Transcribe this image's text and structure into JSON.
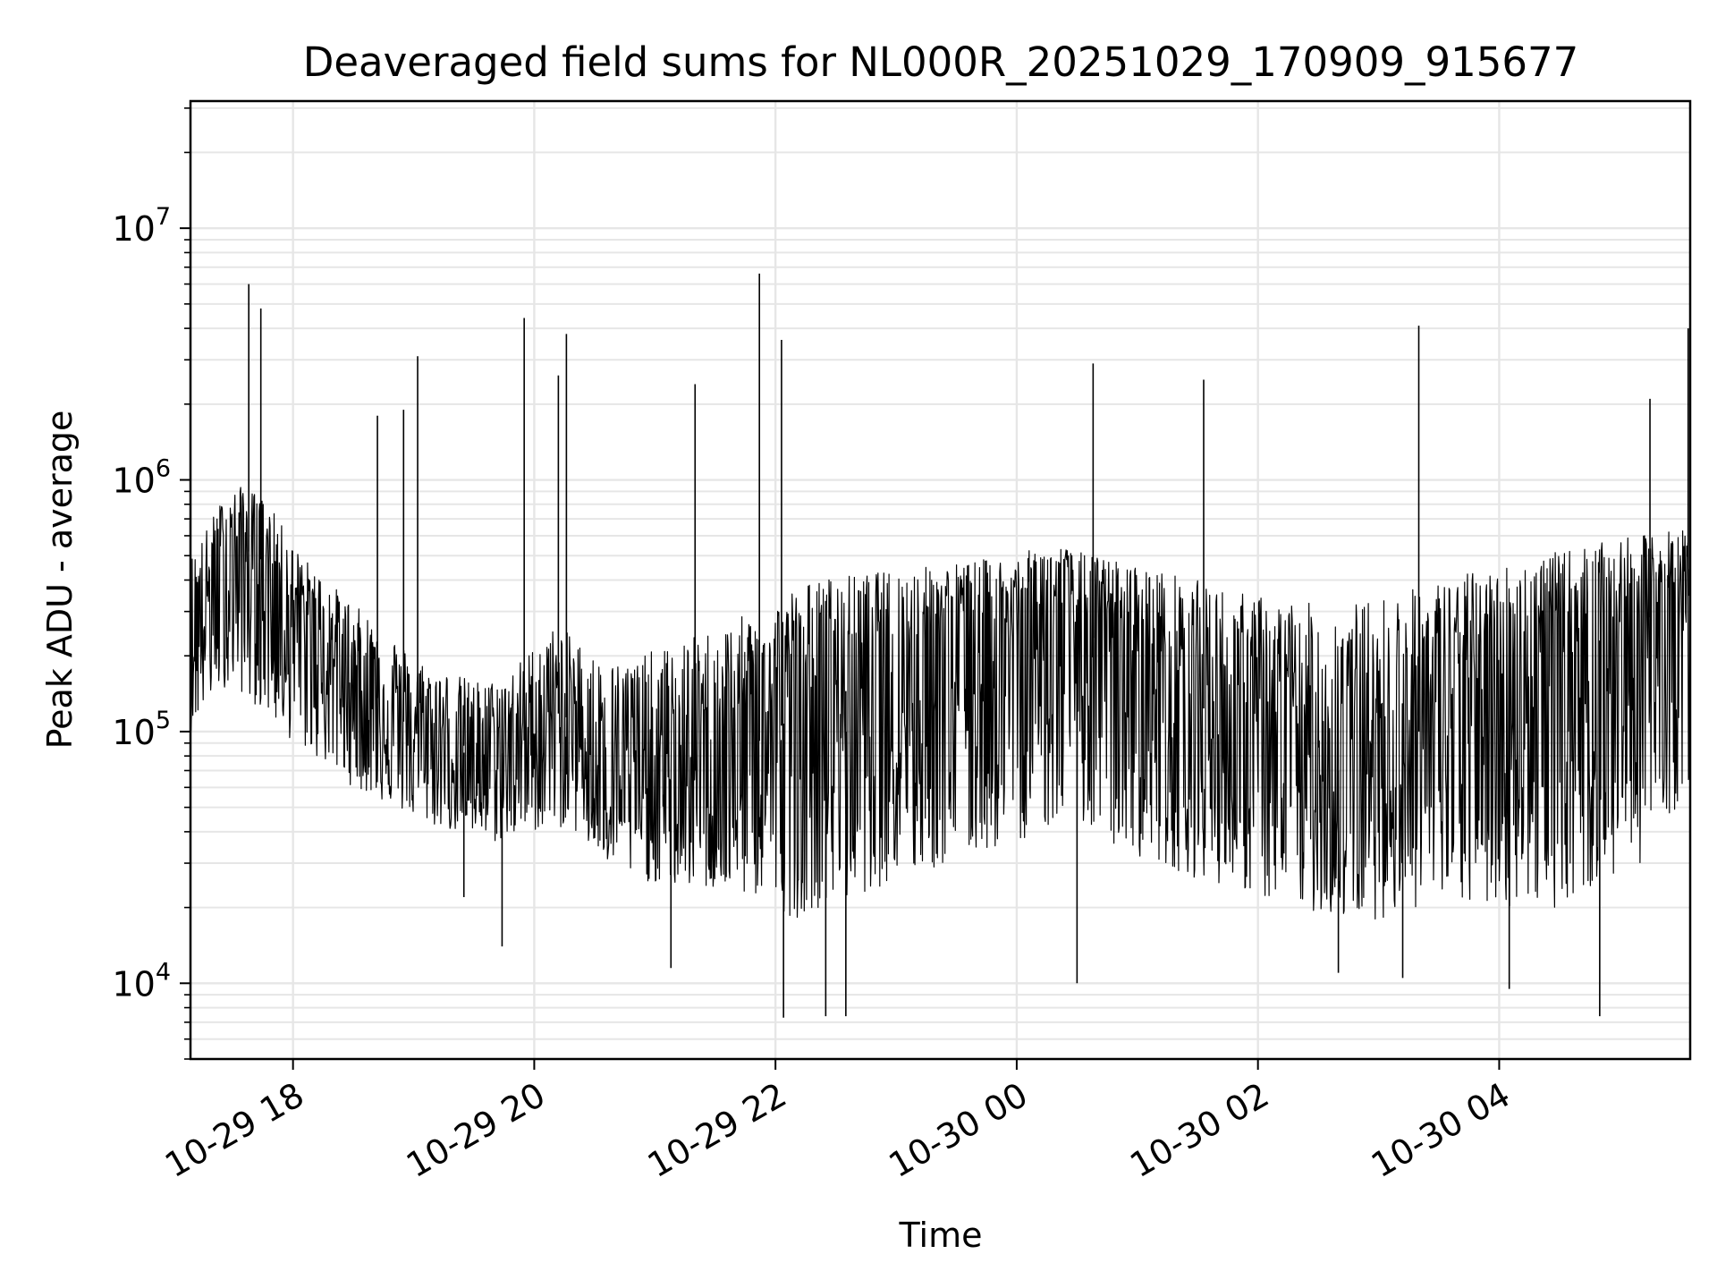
{
  "chart_data": {
    "type": "line",
    "title": "Deaveraged field sums for NL000R_20251029_170909_915677",
    "xlabel": "Time",
    "ylabel": "Peak ADU - average",
    "yscale": "log",
    "ylim": [
      5000,
      32000000
    ],
    "xlim": [
      "2025-10-29 17:09",
      "2025-10-30 05:35"
    ],
    "grid": true,
    "line_color": "#000000",
    "grid_color": "#e6e6e6",
    "x_ticks": [
      {
        "label": "10-29 18",
        "time": "2025-10-29 18:00"
      },
      {
        "label": "10-29 20",
        "time": "2025-10-29 20:00"
      },
      {
        "label": "10-29 22",
        "time": "2025-10-29 22:00"
      },
      {
        "label": "10-30 00",
        "time": "2025-10-30 00:00"
      },
      {
        "label": "10-30 02",
        "time": "2025-10-30 02:00"
      },
      {
        "label": "10-30 04",
        "time": "2025-10-30 04:00"
      }
    ],
    "y_ticks": [
      {
        "value": 10000,
        "base": "10",
        "exp": "4"
      },
      {
        "value": 100000,
        "base": "10",
        "exp": "5"
      },
      {
        "value": 1000000,
        "base": "10",
        "exp": "6"
      },
      {
        "value": 10000000,
        "base": "10",
        "exp": "7"
      }
    ],
    "series": [
      {
        "x": [
          "2025-10-29 17:09",
          "2025-10-29 17:15",
          "2025-10-29 17:25",
          "2025-10-29 17:30",
          "2025-10-29 17:35",
          "2025-10-29 17:40",
          "2025-10-29 17:45",
          "2025-10-29 17:50",
          "2025-10-29 17:55",
          "2025-10-29 18:00",
          "2025-10-29 18:10",
          "2025-10-29 18:20",
          "2025-10-29 18:30",
          "2025-10-29 18:40",
          "2025-10-29 18:50",
          "2025-10-29 19:00",
          "2025-10-29 19:10",
          "2025-10-29 19:20",
          "2025-10-29 19:30",
          "2025-10-29 19:40",
          "2025-10-29 19:50",
          "2025-10-29 20:00",
          "2025-10-29 20:10",
          "2025-10-29 20:20",
          "2025-10-29 20:30",
          "2025-10-29 20:40",
          "2025-10-29 20:50",
          "2025-10-29 21:00",
          "2025-10-29 21:10",
          "2025-10-29 21:20",
          "2025-10-29 21:30",
          "2025-10-29 21:40",
          "2025-10-29 21:50",
          "2025-10-29 22:00",
          "2025-10-29 22:10",
          "2025-10-29 22:20",
          "2025-10-29 22:30",
          "2025-10-29 22:40",
          "2025-10-29 22:50",
          "2025-10-29 23:00",
          "2025-10-29 23:10",
          "2025-10-29 23:20",
          "2025-10-29 23:30",
          "2025-10-29 23:40",
          "2025-10-29 23:50",
          "2025-10-30 00:00",
          "2025-10-30 00:10",
          "2025-10-30 00:20",
          "2025-10-30 00:30",
          "2025-10-30 00:40",
          "2025-10-30 00:50",
          "2025-10-30 01:00",
          "2025-10-30 01:10",
          "2025-10-30 01:20",
          "2025-10-30 01:30",
          "2025-10-30 01:40",
          "2025-10-30 01:50",
          "2025-10-30 02:00",
          "2025-10-30 02:10",
          "2025-10-30 02:20",
          "2025-10-30 02:30",
          "2025-10-30 02:40",
          "2025-10-30 02:50",
          "2025-10-30 03:00",
          "2025-10-30 03:10",
          "2025-10-30 03:20",
          "2025-10-30 03:30",
          "2025-10-30 03:40",
          "2025-10-30 03:50",
          "2025-10-30 04:00",
          "2025-10-30 04:10",
          "2025-10-30 04:20",
          "2025-10-30 04:30",
          "2025-10-30 04:40",
          "2025-10-30 04:50",
          "2025-10-30 05:00",
          "2025-10-30 05:10",
          "2025-10-30 05:20",
          "2025-10-30 05:35"
        ],
        "y": [
          250000,
          300000,
          450000,
          500000,
          550000,
          500000,
          480000,
          400000,
          350000,
          300000,
          250000,
          200000,
          160000,
          140000,
          120000,
          100000,
          90000,
          85000,
          80000,
          80000,
          85000,
          100000,
          120000,
          110000,
          80000,
          70000,
          65000,
          60000,
          65000,
          70000,
          75000,
          80000,
          90000,
          100000,
          120000,
          130000,
          140000,
          150000,
          170000,
          180000,
          190000,
          200000,
          220000,
          230000,
          240000,
          250000,
          270000,
          280000,
          260000,
          230000,
          210000,
          190000,
          170000,
          150000,
          130000,
          110000,
          95000,
          90000,
          85000,
          80000,
          75000,
          70000,
          75000,
          80000,
          90000,
          100000,
          110000,
          120000,
          130000,
          140000,
          150000,
          170000,
          190000,
          210000,
          230000,
          250000,
          270000,
          300000,
          350000
        ],
        "y_low": [
          100000,
          120000,
          150000,
          150000,
          140000,
          130000,
          120000,
          110000,
          100000,
          90000,
          80000,
          70000,
          60000,
          55000,
          50000,
          45000,
          42000,
          40000,
          38000,
          36000,
          38000,
          40000,
          42000,
          40000,
          32000,
          28000,
          26000,
          25000,
          24000,
          24000,
          23000,
          22000,
          22000,
          20000,
          18000,
          20000,
          20000,
          22000,
          24000,
          25000,
          26000,
          28000,
          30000,
          32000,
          34000,
          36000,
          40000,
          42000,
          40000,
          36000,
          34000,
          32000,
          30000,
          28000,
          26000,
          25000,
          24000,
          22000,
          20000,
          20000,
          19000,
          18000,
          18000,
          18000,
          19000,
          20000,
          20000,
          20000,
          20000,
          20000,
          20000,
          20000,
          20000,
          22000,
          24000,
          26000,
          30000,
          40000,
          60000
        ],
        "y_high": [
          500000,
          600000,
          850000,
          900000,
          950000,
          900000,
          850000,
          750000,
          650000,
          550000,
          450000,
          380000,
          320000,
          280000,
          240000,
          200000,
          180000,
          170000,
          160000,
          160000,
          180000,
          220000,
          260000,
          240000,
          200000,
          190000,
          200000,
          210000,
          220000,
          240000,
          260000,
          280000,
          300000,
          330000,
          380000,
          400000,
          420000,
          420000,
          430000,
          440000,
          450000,
          460000,
          470000,
          480000,
          490000,
          500000,
          540000,
          560000,
          520000,
          500000,
          480000,
          460000,
          440000,
          420000,
          400000,
          380000,
          360000,
          350000,
          340000,
          330000,
          320000,
          320000,
          330000,
          340000,
          360000,
          380000,
          400000,
          420000,
          440000,
          460000,
          480000,
          500000,
          520000,
          540000,
          560000,
          580000,
          600000,
          620000,
          650000
        ],
        "spikes": [
          {
            "time": "2025-10-29 17:38",
            "value": 6000000
          },
          {
            "time": "2025-10-29 17:44",
            "value": 4800000
          },
          {
            "time": "2025-10-29 18:42",
            "value": 1800000
          },
          {
            "time": "2025-10-29 18:55",
            "value": 1900000
          },
          {
            "time": "2025-10-29 19:02",
            "value": 3100000
          },
          {
            "time": "2025-10-29 19:55",
            "value": 4400000
          },
          {
            "time": "2025-10-29 20:12",
            "value": 2600000
          },
          {
            "time": "2025-10-29 20:16",
            "value": 3800000
          },
          {
            "time": "2025-10-29 21:20",
            "value": 2400000
          },
          {
            "time": "2025-10-29 21:52",
            "value": 6600000
          },
          {
            "time": "2025-10-29 22:03",
            "value": 3600000
          },
          {
            "time": "2025-10-30 00:38",
            "value": 2900000
          },
          {
            "time": "2025-10-30 01:33",
            "value": 2500000
          },
          {
            "time": "2025-10-30 03:20",
            "value": 4100000
          },
          {
            "time": "2025-10-30 05:15",
            "value": 2100000
          },
          {
            "time": "2025-10-30 05:34",
            "value": 4000000
          }
        ],
        "dips": [
          {
            "time": "2025-10-29 19:25",
            "value": 22000
          },
          {
            "time": "2025-10-29 19:44",
            "value": 14000
          },
          {
            "time": "2025-10-29 21:08",
            "value": 11500
          },
          {
            "time": "2025-10-29 22:04",
            "value": 7300
          },
          {
            "time": "2025-10-29 22:25",
            "value": 7400
          },
          {
            "time": "2025-10-29 22:35",
            "value": 7400
          },
          {
            "time": "2025-10-30 00:30",
            "value": 10000
          },
          {
            "time": "2025-10-30 02:40",
            "value": 11000
          },
          {
            "time": "2025-10-30 03:12",
            "value": 10500
          },
          {
            "time": "2025-10-30 04:05",
            "value": 9500
          },
          {
            "time": "2025-10-30 04:50",
            "value": 7400
          }
        ]
      }
    ]
  }
}
